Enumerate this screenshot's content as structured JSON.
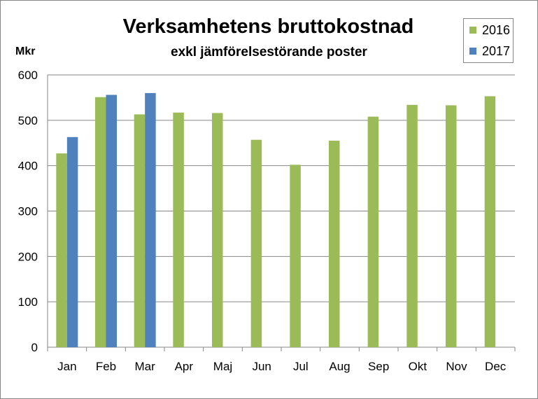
{
  "chart_data": {
    "type": "bar",
    "title": "Verksamhetens bruttokostnad",
    "subtitle": "exkl jämförelsestörande poster",
    "ylabel": "Mkr",
    "xlabel": "",
    "categories": [
      "Jan",
      "Feb",
      "Mar",
      "Apr",
      "Maj",
      "Jun",
      "Jul",
      "Aug",
      "Sep",
      "Okt",
      "Nov",
      "Dec"
    ],
    "series": [
      {
        "name": "2016",
        "color": "#9BBB59",
        "values": [
          427,
          551,
          513,
          517,
          516,
          457,
          402,
          455,
          508,
          534,
          533,
          553
        ]
      },
      {
        "name": "2017",
        "color": "#4F81BD",
        "values": [
          463,
          556,
          560,
          null,
          null,
          null,
          null,
          null,
          null,
          null,
          null,
          null
        ]
      }
    ],
    "ylim": [
      0,
      600
    ],
    "yticks": [
      0,
      100,
      200,
      300,
      400,
      500,
      600
    ],
    "grid": true,
    "legend_position": "top-right"
  }
}
